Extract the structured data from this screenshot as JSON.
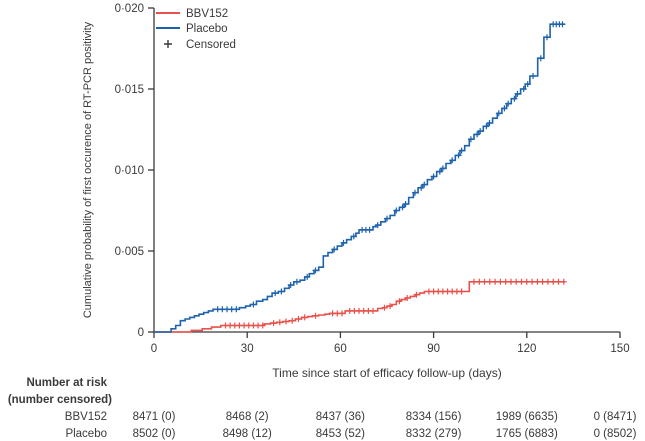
{
  "chart_data": {
    "type": "line",
    "subtype": "kaplan-meier-cumulative-incidence-step",
    "title": "",
    "xlabel": "Time since start of efficacy follow-up (days)",
    "ylabel": "Cumulative probability of first occurence of RT-PCR positivity",
    "xlim": [
      0,
      150
    ],
    "ylim": [
      0,
      0.02
    ],
    "grid": false,
    "legend_position": "top-left-inside",
    "censored_label": "Censored",
    "x_ticks": {
      "values": [
        0,
        30,
        60,
        90,
        120,
        150
      ],
      "labels": [
        "0",
        "30",
        "60",
        "90",
        "120",
        "150"
      ]
    },
    "y_ticks": {
      "values": [
        0,
        0.005,
        0.01,
        0.015,
        0.02
      ],
      "labels": [
        "0",
        "0·005",
        "0·010",
        "0·015",
        "0·020"
      ]
    },
    "colors": {
      "bbv152": "#e9504a",
      "placebo": "#1d62ac",
      "axis": "#3a3a3a"
    },
    "series": [
      {
        "name": "BBV152",
        "color_key": "bbv152",
        "points": [
          [
            0,
            0
          ],
          [
            12,
            0.0001
          ],
          [
            15.5,
            0.0002
          ],
          [
            18.5,
            0.0003
          ],
          [
            21.5,
            0.0004
          ],
          [
            35.5,
            0.0005
          ],
          [
            37.5,
            0.00055
          ],
          [
            39.5,
            0.0006
          ],
          [
            41.5,
            0.00065
          ],
          [
            43.5,
            0.0007
          ],
          [
            45.5,
            0.0008
          ],
          [
            47.5,
            0.0009
          ],
          [
            49.5,
            0.00095
          ],
          [
            51,
            0.001
          ],
          [
            53,
            0.00105
          ],
          [
            55,
            0.0011
          ],
          [
            56.5,
            0.00115
          ],
          [
            61.5,
            0.0013
          ],
          [
            72,
            0.00145
          ],
          [
            73.5,
            0.0015
          ],
          [
            75,
            0.0016
          ],
          [
            76.5,
            0.0017
          ],
          [
            78,
            0.0019
          ],
          [
            79.5,
            0.002
          ],
          [
            81,
            0.0021
          ],
          [
            82.5,
            0.0022
          ],
          [
            84,
            0.0023
          ],
          [
            85.5,
            0.0024
          ],
          [
            87,
            0.0025
          ],
          [
            101.5,
            0.0031
          ],
          [
            132.3,
            0.0031
          ]
        ],
        "censored": [
          [
            23,
            0.0004
          ],
          [
            24.5,
            0.0004
          ],
          [
            26,
            0.0004
          ],
          [
            27.5,
            0.0004
          ],
          [
            29,
            0.0004
          ],
          [
            30.5,
            0.0004
          ],
          [
            32,
            0.0004
          ],
          [
            33.5,
            0.0004
          ],
          [
            35,
            0.0004
          ],
          [
            38.5,
            0.00055
          ],
          [
            40.5,
            0.0006
          ],
          [
            42.5,
            0.00065
          ],
          [
            44.5,
            0.0007
          ],
          [
            46.5,
            0.0008
          ],
          [
            48.5,
            0.0009
          ],
          [
            52,
            0.001
          ],
          [
            57.5,
            0.00115
          ],
          [
            59,
            0.00115
          ],
          [
            60.5,
            0.00115
          ],
          [
            63,
            0.0013
          ],
          [
            64.5,
            0.0013
          ],
          [
            66,
            0.0013
          ],
          [
            67.5,
            0.0013
          ],
          [
            69,
            0.0013
          ],
          [
            70.5,
            0.0013
          ],
          [
            74.2,
            0.0015
          ],
          [
            76,
            0.0016
          ],
          [
            79,
            0.0019
          ],
          [
            81.5,
            0.0021
          ],
          [
            84.5,
            0.0023
          ],
          [
            88.5,
            0.0025
          ],
          [
            90,
            0.0025
          ],
          [
            91.5,
            0.0025
          ],
          [
            93,
            0.0025
          ],
          [
            94.5,
            0.0025
          ],
          [
            96,
            0.0025
          ],
          [
            97.5,
            0.0025
          ],
          [
            99,
            0.0025
          ],
          [
            103,
            0.0031
          ],
          [
            104.7,
            0.0031
          ],
          [
            106.4,
            0.0031
          ],
          [
            108.1,
            0.0031
          ],
          [
            109.8,
            0.0031
          ],
          [
            111.5,
            0.0031
          ],
          [
            113.2,
            0.0031
          ],
          [
            114.9,
            0.0031
          ],
          [
            116.6,
            0.0031
          ],
          [
            118.3,
            0.0031
          ],
          [
            120,
            0.0031
          ],
          [
            121.7,
            0.0031
          ],
          [
            123.4,
            0.0031
          ],
          [
            125.1,
            0.0031
          ],
          [
            126.8,
            0.0031
          ],
          [
            128.5,
            0.0031
          ],
          [
            130.2,
            0.0031
          ],
          [
            131.9,
            0.0031
          ]
        ]
      },
      {
        "name": "Placebo",
        "color_key": "placebo",
        "points": [
          [
            0,
            0
          ],
          [
            5.5,
            0.0002
          ],
          [
            7,
            0.0004
          ],
          [
            8.5,
            0.0007
          ],
          [
            10,
            0.0008
          ],
          [
            11.5,
            0.0009
          ],
          [
            13,
            0.001
          ],
          [
            14.5,
            0.0011
          ],
          [
            16,
            0.0012
          ],
          [
            17.5,
            0.0013
          ],
          [
            19,
            0.0014
          ],
          [
            27.5,
            0.0015
          ],
          [
            29.5,
            0.0016
          ],
          [
            31,
            0.0017
          ],
          [
            33,
            0.0019
          ],
          [
            35,
            0.002
          ],
          [
            36.5,
            0.0022
          ],
          [
            38,
            0.0024
          ],
          [
            40,
            0.0025
          ],
          [
            42,
            0.0027
          ],
          [
            43.5,
            0.0029
          ],
          [
            45,
            0.0031
          ],
          [
            47,
            0.0032
          ],
          [
            48.5,
            0.0034
          ],
          [
            50,
            0.0036
          ],
          [
            51.5,
            0.0038
          ],
          [
            53,
            0.004
          ],
          [
            54.5,
            0.0047
          ],
          [
            56,
            0.0049
          ],
          [
            57.5,
            0.0051
          ],
          [
            59,
            0.0053
          ],
          [
            60.5,
            0.0055
          ],
          [
            62,
            0.0057
          ],
          [
            63.5,
            0.0059
          ],
          [
            65,
            0.0061
          ],
          [
            66,
            0.0063
          ],
          [
            70.5,
            0.0065
          ],
          [
            71.5,
            0.0066
          ],
          [
            73,
            0.0068
          ],
          [
            74.5,
            0.007
          ],
          [
            76,
            0.0072
          ],
          [
            77.5,
            0.0075
          ],
          [
            79,
            0.0077
          ],
          [
            80.5,
            0.0079
          ],
          [
            82,
            0.0083
          ],
          [
            83.5,
            0.0086
          ],
          [
            85,
            0.0089
          ],
          [
            86.5,
            0.0091
          ],
          [
            88,
            0.0094
          ],
          [
            89.5,
            0.0096
          ],
          [
            91,
            0.0099
          ],
          [
            92.5,
            0.0101
          ],
          [
            94,
            0.0104
          ],
          [
            95.5,
            0.0106
          ],
          [
            97,
            0.0109
          ],
          [
            98.5,
            0.0112
          ],
          [
            100,
            0.0115
          ],
          [
            101.5,
            0.0119
          ],
          [
            103,
            0.0122
          ],
          [
            104.5,
            0.0124
          ],
          [
            106,
            0.0127
          ],
          [
            107.5,
            0.0129
          ],
          [
            109,
            0.0132
          ],
          [
            110.5,
            0.0135
          ],
          [
            112,
            0.0138
          ],
          [
            113.5,
            0.0141
          ],
          [
            115,
            0.0144
          ],
          [
            116.5,
            0.0147
          ],
          [
            118,
            0.015
          ],
          [
            119.5,
            0.0153
          ],
          [
            121,
            0.0158
          ],
          [
            123.5,
            0.0169
          ],
          [
            125.5,
            0.0182
          ],
          [
            127.5,
            0.019
          ],
          [
            132.3,
            0.019
          ]
        ],
        "censored": [
          [
            20.5,
            0.0014
          ],
          [
            22,
            0.0014
          ],
          [
            23.5,
            0.0014
          ],
          [
            25,
            0.0014
          ],
          [
            26.5,
            0.0014
          ],
          [
            32,
            0.0017
          ],
          [
            39,
            0.0024
          ],
          [
            41,
            0.0025
          ],
          [
            44,
            0.0029
          ],
          [
            46,
            0.0031
          ],
          [
            49.3,
            0.0034
          ],
          [
            52,
            0.0038
          ],
          [
            58,
            0.0051
          ],
          [
            61,
            0.0055
          ],
          [
            64.3,
            0.0059
          ],
          [
            67,
            0.0063
          ],
          [
            68.2,
            0.0063
          ],
          [
            69.4,
            0.0063
          ],
          [
            72,
            0.0066
          ],
          [
            75,
            0.007
          ],
          [
            78,
            0.0075
          ],
          [
            80,
            0.0077
          ],
          [
            81,
            0.0079
          ],
          [
            84,
            0.0086
          ],
          [
            86,
            0.0089
          ],
          [
            87,
            0.0091
          ],
          [
            90,
            0.0096
          ],
          [
            92,
            0.0099
          ],
          [
            93,
            0.0101
          ],
          [
            96,
            0.0106
          ],
          [
            98,
            0.0109
          ],
          [
            99,
            0.0112
          ],
          [
            102,
            0.0119
          ],
          [
            104,
            0.0122
          ],
          [
            105,
            0.0124
          ],
          [
            107,
            0.0127
          ],
          [
            108,
            0.0129
          ],
          [
            111,
            0.0135
          ],
          [
            112.8,
            0.0138
          ],
          [
            114,
            0.0141
          ],
          [
            116,
            0.0144
          ],
          [
            117,
            0.0147
          ],
          [
            119,
            0.015
          ],
          [
            120.3,
            0.0153
          ],
          [
            122,
            0.0158
          ],
          [
            124.5,
            0.0169
          ],
          [
            126.5,
            0.0182
          ],
          [
            128.5,
            0.019
          ],
          [
            129.5,
            0.019
          ],
          [
            130.5,
            0.019
          ],
          [
            131.5,
            0.019
          ]
        ]
      }
    ]
  },
  "risk_table": {
    "title_line1": "Number at risk",
    "title_line2": "(number censored)",
    "rows": [
      {
        "label": "BBV152",
        "values": [
          "8471 (0)",
          "8468 (2)",
          "8437 (36)",
          "8334 (156)",
          "1989 (6635)",
          "0 (8471)"
        ]
      },
      {
        "label": "Placebo",
        "values": [
          "8502 (0)",
          "8498 (12)",
          "8453 (52)",
          "8332 (279)",
          "1765 (6883)",
          "0 (8502)"
        ]
      }
    ]
  }
}
